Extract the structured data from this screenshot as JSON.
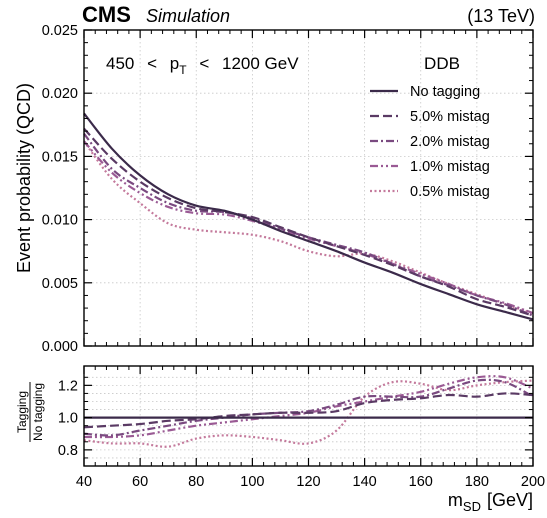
{
  "header": {
    "cms": "CMS",
    "simulation": "Simulation",
    "energy": "(13 TeV)"
  },
  "chart_data": {
    "type": "line",
    "annotation": {
      "low": "450",
      "lt": "<",
      "p": "p",
      "sub": "T",
      "high": "1200 GeV"
    },
    "legend_title": "DDB",
    "legend_placement": "top-right",
    "xlabel": {
      "main": "m",
      "sub": "SD",
      "unit": "[GeV]"
    },
    "xlim": [
      40,
      200
    ],
    "xticks": [
      "40",
      "60",
      "80",
      "100",
      "120",
      "140",
      "160",
      "180",
      "200"
    ],
    "top_panel": {
      "ylabel": "Event probability (QCD)",
      "ylim": [
        0,
        0.025
      ],
      "yticks": [
        "0.000",
        "0.005",
        "0.010",
        "0.015",
        "0.020",
        "0.025"
      ],
      "grid": true
    },
    "ratio_panel": {
      "ylabel_num": "Tagging",
      "ylabel_den": "No tagging",
      "ylim": [
        0.7,
        1.32
      ],
      "yticks": [
        "0.8",
        "1.0",
        "1.2"
      ],
      "grid": true
    },
    "x": [
      40,
      50,
      60,
      70,
      80,
      90,
      100,
      110,
      120,
      130,
      140,
      150,
      160,
      170,
      180,
      190,
      200
    ],
    "series": [
      {
        "name": "No tagging",
        "color": "#3b2a4a",
        "dash": "solid",
        "values": [
          0.0184,
          0.0156,
          0.0135,
          0.012,
          0.0111,
          0.0107,
          0.01,
          0.0091,
          0.0083,
          0.0075,
          0.0066,
          0.0058,
          0.0049,
          0.0041,
          0.0033,
          0.0027,
          0.0021
        ],
        "ratio": [
          1.0,
          1.0,
          1.0,
          1.0,
          1.0,
          1.0,
          1.0,
          1.0,
          1.0,
          1.0,
          1.0,
          1.0,
          1.0,
          1.0,
          1.0,
          1.0,
          1.0
        ]
      },
      {
        "name": "5.0% mistag",
        "color": "#5a3a64",
        "dash": "dashed",
        "values": [
          0.0172,
          0.0148,
          0.013,
          0.0117,
          0.0109,
          0.0106,
          0.0102,
          0.0094,
          0.0086,
          0.0079,
          0.0072,
          0.0064,
          0.0055,
          0.0047,
          0.0037,
          0.0031,
          0.0024
        ],
        "ratio": [
          0.94,
          0.95,
          0.96,
          0.98,
          0.99,
          1.01,
          1.02,
          1.03,
          1.03,
          1.04,
          1.09,
          1.11,
          1.12,
          1.14,
          1.13,
          1.15,
          1.14
        ]
      },
      {
        "name": "2.0% mistag",
        "color": "#7a4a80",
        "dash": "dashdot",
        "values": [
          0.0168,
          0.014,
          0.0125,
          0.0113,
          0.0107,
          0.0106,
          0.0101,
          0.0093,
          0.0086,
          0.008,
          0.0074,
          0.0065,
          0.0055,
          0.0048,
          0.004,
          0.0033,
          0.0024
        ],
        "ratio": [
          0.9,
          0.89,
          0.92,
          0.95,
          0.98,
          1.0,
          1.02,
          1.03,
          1.04,
          1.08,
          1.13,
          1.13,
          1.13,
          1.18,
          1.23,
          1.22,
          1.13
        ]
      },
      {
        "name": "1.0% mistag",
        "color": "#9a5a94",
        "dash": "dashdotdot",
        "values": [
          0.0162,
          0.0137,
          0.0121,
          0.011,
          0.0105,
          0.0104,
          0.0099,
          0.0092,
          0.0085,
          0.0079,
          0.0073,
          0.0065,
          0.0057,
          0.0049,
          0.004,
          0.0034,
          0.0026
        ],
        "ratio": [
          0.88,
          0.88,
          0.89,
          0.92,
          0.95,
          0.97,
          0.99,
          1.01,
          1.03,
          1.07,
          1.1,
          1.13,
          1.16,
          1.21,
          1.25,
          1.25,
          1.18
        ]
      },
      {
        "name": "0.5% mistag",
        "color": "#c47a9c",
        "dash": "dotted",
        "values": [
          0.0162,
          0.0132,
          0.0113,
          0.0097,
          0.0092,
          0.009,
          0.0088,
          0.0083,
          0.0075,
          0.0071,
          0.0073,
          0.0067,
          0.0058,
          0.0049,
          0.0041,
          0.0033,
          0.0026
        ],
        "ratio": [
          0.86,
          0.84,
          0.84,
          0.82,
          0.87,
          0.89,
          0.88,
          0.86,
          0.84,
          0.92,
          1.13,
          1.22,
          1.21,
          1.17,
          1.2,
          1.22,
          1.23
        ]
      }
    ]
  }
}
